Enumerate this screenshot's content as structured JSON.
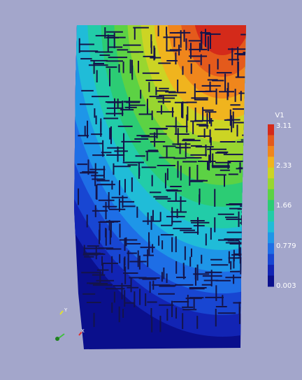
{
  "legend": {
    "title": "V1",
    "labels": [
      "3.11",
      "2.33",
      "1.66",
      "0.779",
      "0.003"
    ]
  },
  "axes_triad": {
    "y_label": "Y",
    "x_label": "X"
  }
}
